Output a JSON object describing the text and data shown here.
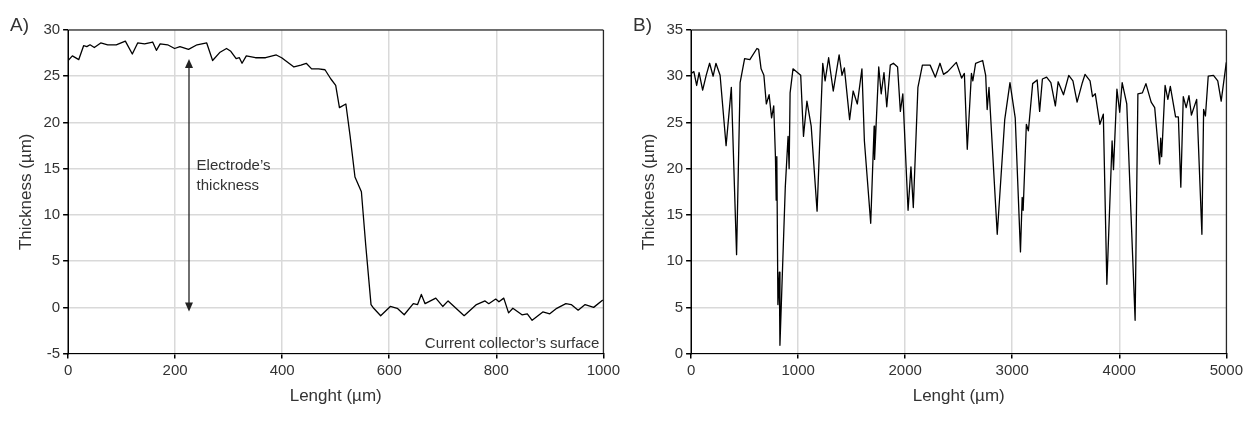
{
  "chart_data": [
    {
      "type": "line",
      "title": "A)",
      "xlabel": "Lenght (µm)",
      "ylabel": "Thickness (µm)",
      "xlim": [
        0,
        1000
      ],
      "xticks": [
        0,
        200,
        400,
        600,
        800,
        1000
      ],
      "ylim": [
        -5,
        30
      ],
      "yticks": [
        -5,
        0,
        5,
        10,
        15,
        20,
        25,
        30
      ],
      "grid": true,
      "legend": false,
      "marker": "none",
      "line_style": "solid",
      "annotations": [
        "Electrode’s thickness",
        "Current collector’s surface"
      ],
      "series": [
        {
          "color": "#000000",
          "x": [
            0,
            8,
            20,
            29,
            35,
            41,
            49,
            61,
            74,
            90,
            107,
            120,
            130,
            143,
            158,
            165,
            172,
            186,
            199,
            209,
            225,
            241,
            259,
            270,
            284,
            296,
            304,
            314,
            320,
            325,
            333,
            350,
            369,
            389,
            399,
            422,
            435,
            445,
            455,
            468,
            480,
            491,
            500,
            507,
            519,
            527,
            536,
            548,
            556,
            566,
            571,
            584,
            602,
            615,
            628,
            645,
            653,
            660,
            667,
            687,
            700,
            710,
            740,
            763,
            779,
            786,
            799,
            805,
            814,
            823,
            831,
            848,
            858,
            867,
            887,
            900,
            913,
            930,
            940,
            953,
            966,
            982,
            999
          ],
          "values": [
            26.7,
            27.2,
            26.8,
            28.3,
            28.2,
            28.4,
            28.1,
            28.6,
            28.4,
            28.4,
            28.8,
            27.4,
            28.6,
            28.5,
            28.7,
            27.8,
            28.5,
            28.4,
            28.0,
            28.2,
            27.9,
            28.4,
            28.6,
            26.7,
            27.6,
            28.0,
            27.7,
            26.9,
            27.0,
            26.4,
            27.2,
            27.0,
            27.0,
            27.3,
            27.0,
            26.0,
            26.2,
            26.4,
            25.8,
            25.8,
            25.7,
            24.7,
            24.0,
            21.6,
            22.0,
            18.5,
            14.1,
            12.5,
            6.8,
            0.3,
            -0.1,
            -0.9,
            0.1,
            -0.1,
            -0.8,
            0.4,
            0.3,
            1.4,
            0.4,
            1.0,
            0.1,
            0.7,
            -0.9,
            0.3,
            0.7,
            0.4,
            0.9,
            0.6,
            1.0,
            -0.6,
            -0.1,
            -0.8,
            -0.7,
            -1.4,
            -0.5,
            -0.7,
            -0.1,
            0.4,
            0.3,
            -0.3,
            0.3,
            0.0,
            0.8
          ]
        }
      ]
    },
    {
      "type": "line",
      "title": "B)",
      "xlabel": "Lenght (µm)",
      "ylabel": "Thickness (µm)",
      "xlim": [
        0,
        5000
      ],
      "xticks": [
        0,
        1000,
        2000,
        3000,
        4000,
        5000
      ],
      "ylim": [
        0,
        35
      ],
      "yticks": [
        0,
        5,
        10,
        15,
        20,
        25,
        30,
        35
      ],
      "grid": true,
      "legend": false,
      "marker": "none",
      "line_style": "solid",
      "series": [
        {
          "color": "#000000",
          "x": [
            0,
            26,
            52,
            75,
            108,
            141,
            173,
            206,
            232,
            271,
            327,
            376,
            425,
            458,
            500,
            549,
            615,
            631,
            654,
            680,
            703,
            729,
            752,
            772,
            788,
            795,
            801,
            811,
            824,
            830,
            880,
            906,
            916,
            925,
            952,
            1024,
            1050,
            1082,
            1122,
            1177,
            1230,
            1252,
            1285,
            1328,
            1383,
            1410,
            1432,
            1481,
            1514,
            1553,
            1596,
            1619,
            1678,
            1710,
            1714,
            1753,
            1776,
            1802,
            1828,
            1861,
            1890,
            1929,
            1955,
            1978,
            2027,
            2054,
            2076,
            2119,
            2161,
            2233,
            2282,
            2325,
            2358,
            2397,
            2478,
            2527,
            2553,
            2580,
            2619,
            2632,
            2658,
            2724,
            2752,
            2766,
            2783,
            2860,
            2930,
            2979,
            3028,
            3077,
            3093,
            3102,
            3132,
            3151,
            3191,
            3233,
            3256,
            3282,
            3321,
            3361,
            3403,
            3429,
            3479,
            3528,
            3567,
            3606,
            3655,
            3680,
            3727,
            3750,
            3776,
            3819,
            3851,
            3884,
            3933,
            3946,
            3978,
            4004,
            4027,
            4070,
            4148,
            4174,
            4216,
            4249,
            4298,
            4331,
            4377,
            4387,
            4396,
            4428,
            4454,
            4477,
            4526,
            4552,
            4575,
            4598,
            4625,
            4651,
            4674,
            4723,
            4772,
            4788,
            4805,
            4831,
            4880,
            4920,
            4952,
            5000
          ],
          "values": [
            30.3,
            30.5,
            29.0,
            30.4,
            28.5,
            30.1,
            31.4,
            30.0,
            31.4,
            30.1,
            22.5,
            28.8,
            10.7,
            29.3,
            31.9,
            31.8,
            33.0,
            32.9,
            30.8,
            30.1,
            27.0,
            28.0,
            25.5,
            26.8,
            21.3,
            16.6,
            21.3,
            5.3,
            8.8,
            0.9,
            18.0,
            23.5,
            20.0,
            28.2,
            30.8,
            30.1,
            23.5,
            27.3,
            24.6,
            15.4,
            31.4,
            29.5,
            32.0,
            28.4,
            32.3,
            30.1,
            30.9,
            25.3,
            28.4,
            27.0,
            30.8,
            23.0,
            14.1,
            24.6,
            21.0,
            31.0,
            28.1,
            30.4,
            26.7,
            31.2,
            31.4,
            31.0,
            26.2,
            28.1,
            15.5,
            20.2,
            15.8,
            28.8,
            31.2,
            31.2,
            29.9,
            31.4,
            30.2,
            30.5,
            31.5,
            29.8,
            30.3,
            22.1,
            30.3,
            29.5,
            31.4,
            31.7,
            30.1,
            26.4,
            28.8,
            12.9,
            25.3,
            29.3,
            25.5,
            11.0,
            16.9,
            15.5,
            24.8,
            24.1,
            29.2,
            29.6,
            26.2,
            29.7,
            29.9,
            29.3,
            26.8,
            29.4,
            28.0,
            30.1,
            29.5,
            27.2,
            29.3,
            30.2,
            29.5,
            27.8,
            28.1,
            24.8,
            25.9,
            7.5,
            23.0,
            19.9,
            28.6,
            26.1,
            29.3,
            27.0,
            3.6,
            28.1,
            28.2,
            29.2,
            27.2,
            26.6,
            20.5,
            23.3,
            21.3,
            29.0,
            27.5,
            28.9,
            25.6,
            25.6,
            18.0,
            27.8,
            26.6,
            27.9,
            25.8,
            27.5,
            12.9,
            26.4,
            25.7,
            30.0,
            30.1,
            29.5,
            27.3,
            31.5
          ]
        }
      ]
    }
  ]
}
